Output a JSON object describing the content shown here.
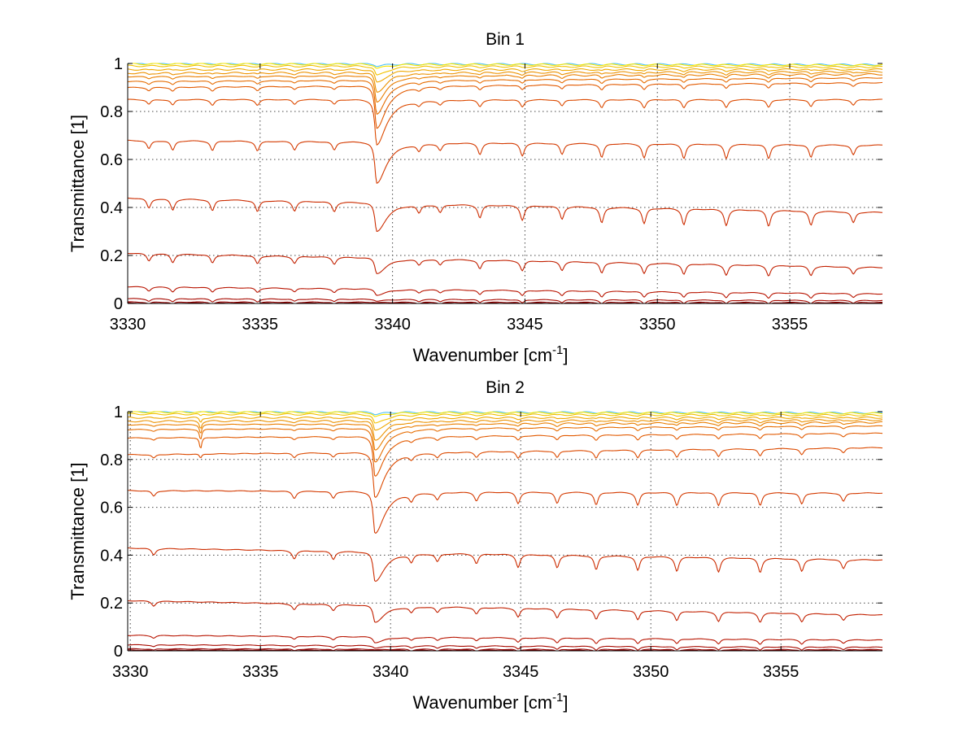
{
  "chart_data": [
    {
      "type": "line",
      "title": "Bin 1",
      "xlabel": "Wavenumber [cm",
      "xlabel_sup": "-1",
      "xlabel_end": "]",
      "ylabel": "Transmittance [1]",
      "xlim": [
        3330,
        3358.5
      ],
      "ylim": [
        0,
        1
      ],
      "xticks": [
        3330,
        3335,
        3340,
        3345,
        3350,
        3355
      ],
      "yticks": [
        0,
        0.2,
        0.4,
        0.6,
        0.8,
        1
      ],
      "ytick_labels": [
        "0",
        "0.2",
        "0.4",
        "0.6",
        "0.8",
        "1"
      ],
      "grid": true,
      "series": [
        {
          "baseline_start": 1.0,
          "baseline_end": 0.995,
          "main_dip_min": 0.99,
          "color": "#4fc3f7"
        },
        {
          "baseline_start": 0.998,
          "baseline_end": 0.993,
          "main_dip_min": 0.98,
          "color": "#f6e600"
        },
        {
          "baseline_start": 0.99,
          "baseline_end": 0.985,
          "main_dip_min": 0.95,
          "color": "#f2c200"
        },
        {
          "baseline_start": 0.975,
          "baseline_end": 0.975,
          "main_dip_min": 0.92,
          "color": "#efa800"
        },
        {
          "baseline_start": 0.96,
          "baseline_end": 0.965,
          "main_dip_min": 0.88,
          "color": "#ec9200"
        },
        {
          "baseline_start": 0.945,
          "baseline_end": 0.955,
          "main_dip_min": 0.84,
          "color": "#e97e00"
        },
        {
          "baseline_start": 0.925,
          "baseline_end": 0.94,
          "main_dip_min": 0.79,
          "color": "#e66c00"
        },
        {
          "baseline_start": 0.9,
          "baseline_end": 0.92,
          "main_dip_min": 0.73,
          "color": "#e25a00"
        },
        {
          "baseline_start": 0.85,
          "baseline_end": 0.85,
          "main_dip_min": 0.66,
          "color": "#dc4a00"
        },
        {
          "baseline_start": 0.68,
          "baseline_end": 0.66,
          "main_dip_min": 0.5,
          "color": "#d43a00"
        },
        {
          "baseline_start": 0.44,
          "baseline_end": 0.38,
          "main_dip_min": 0.3,
          "color": "#cc2c00"
        },
        {
          "baseline_start": 0.21,
          "baseline_end": 0.15,
          "main_dip_min": 0.125,
          "color": "#c22000"
        },
        {
          "baseline_start": 0.07,
          "baseline_end": 0.04,
          "main_dip_min": 0.035,
          "color": "#b81400"
        },
        {
          "baseline_start": 0.02,
          "baseline_end": 0.012,
          "main_dip_min": 0.01,
          "color": "#a80a00"
        },
        {
          "baseline_start": 0.006,
          "baseline_end": 0.004,
          "main_dip_min": 0.003,
          "color": "#950000"
        },
        {
          "baseline_start": 0.002,
          "baseline_end": 0.001,
          "main_dip_min": 0.0005,
          "color": "#800000"
        }
      ],
      "main_line_center": 3339.4,
      "secondary_lines": [
        {
          "x": 3330.8,
          "depth": 0.6
        },
        {
          "x": 3331.7,
          "depth": 0.7
        },
        {
          "x": 3333.2,
          "depth": 0.7
        },
        {
          "x": 3334.9,
          "depth": 0.7
        },
        {
          "x": 3336.3,
          "depth": 0.6
        },
        {
          "x": 3337.8,
          "depth": 0.6
        },
        {
          "x": 3341.0,
          "depth": 0.5
        },
        {
          "x": 3341.8,
          "depth": 0.5
        },
        {
          "x": 3343.3,
          "depth": 0.8
        },
        {
          "x": 3344.9,
          "depth": 0.9
        },
        {
          "x": 3346.4,
          "depth": 0.8
        },
        {
          "x": 3347.9,
          "depth": 1.0
        },
        {
          "x": 3349.5,
          "depth": 1.0
        },
        {
          "x": 3351.0,
          "depth": 1.0
        },
        {
          "x": 3352.6,
          "depth": 1.0
        },
        {
          "x": 3354.2,
          "depth": 1.0
        },
        {
          "x": 3355.8,
          "depth": 0.9
        },
        {
          "x": 3357.4,
          "depth": 0.7
        }
      ]
    },
    {
      "type": "line",
      "title": "Bin 2",
      "xlabel": "Wavenumber [cm",
      "xlabel_sup": "-1",
      "xlabel_end": "]",
      "ylabel": "Transmittance [1]",
      "xlim": [
        3329.9,
        3358.9
      ],
      "ylim": [
        0,
        1
      ],
      "xticks": [
        3330,
        3335,
        3340,
        3345,
        3350,
        3355
      ],
      "yticks": [
        0,
        0.2,
        0.4,
        0.6,
        0.8,
        1
      ],
      "ytick_labels": [
        "0",
        "0.2",
        "0.4",
        "0.6",
        "0.8",
        "1"
      ],
      "grid": true,
      "series": [
        {
          "baseline_start": 1.0,
          "baseline_end": 0.995,
          "main_dip_min": 0.99,
          "color": "#4fc3f7"
        },
        {
          "baseline_start": 0.998,
          "baseline_end": 0.993,
          "main_dip_min": 0.98,
          "color": "#f6e600"
        },
        {
          "baseline_start": 0.99,
          "baseline_end": 0.985,
          "main_dip_min": 0.95,
          "color": "#f2c200"
        },
        {
          "baseline_start": 0.975,
          "baseline_end": 0.975,
          "main_dip_min": 0.92,
          "color": "#efa800"
        },
        {
          "baseline_start": 0.96,
          "baseline_end": 0.965,
          "main_dip_min": 0.88,
          "color": "#ec9200"
        },
        {
          "baseline_start": 0.945,
          "baseline_end": 0.955,
          "main_dip_min": 0.84,
          "color": "#e97e00"
        },
        {
          "baseline_start": 0.925,
          "baseline_end": 0.94,
          "main_dip_min": 0.79,
          "color": "#e66c00"
        },
        {
          "baseline_start": 0.89,
          "baseline_end": 0.91,
          "main_dip_min": 0.73,
          "color": "#e25a00"
        },
        {
          "baseline_start": 0.82,
          "baseline_end": 0.85,
          "main_dip_min": 0.64,
          "color": "#dc4a00"
        },
        {
          "baseline_start": 0.67,
          "baseline_end": 0.66,
          "main_dip_min": 0.49,
          "color": "#d43a00"
        },
        {
          "baseline_start": 0.43,
          "baseline_end": 0.38,
          "main_dip_min": 0.29,
          "color": "#cc2c00"
        },
        {
          "baseline_start": 0.21,
          "baseline_end": 0.15,
          "main_dip_min": 0.12,
          "color": "#c22000"
        },
        {
          "baseline_start": 0.065,
          "baseline_end": 0.045,
          "main_dip_min": 0.035,
          "color": "#b81400"
        },
        {
          "baseline_start": 0.025,
          "baseline_end": 0.015,
          "main_dip_min": 0.012,
          "color": "#a80a00"
        },
        {
          "baseline_start": 0.008,
          "baseline_end": 0.005,
          "main_dip_min": 0.004,
          "color": "#950000"
        },
        {
          "baseline_start": 0.003,
          "baseline_end": 0.002,
          "main_dip_min": 0.001,
          "color": "#800000"
        }
      ],
      "main_line_center": 3339.4,
      "extra_line": {
        "x": 3332.7,
        "min": 0.79
      },
      "secondary_lines": [
        {
          "x": 3330.9,
          "depth": 0.4
        },
        {
          "x": 3336.3,
          "depth": 0.5
        },
        {
          "x": 3337.8,
          "depth": 0.5
        },
        {
          "x": 3340.8,
          "depth": 0.5
        },
        {
          "x": 3341.8,
          "depth": 0.5
        },
        {
          "x": 3343.3,
          "depth": 0.6
        },
        {
          "x": 3344.9,
          "depth": 0.8
        },
        {
          "x": 3346.4,
          "depth": 0.8
        },
        {
          "x": 3347.9,
          "depth": 0.9
        },
        {
          "x": 3349.5,
          "depth": 0.9
        },
        {
          "x": 3351.0,
          "depth": 0.9
        },
        {
          "x": 3352.6,
          "depth": 0.9
        },
        {
          "x": 3354.2,
          "depth": 0.9
        },
        {
          "x": 3355.8,
          "depth": 0.8
        },
        {
          "x": 3357.4,
          "depth": 0.6
        }
      ]
    }
  ]
}
